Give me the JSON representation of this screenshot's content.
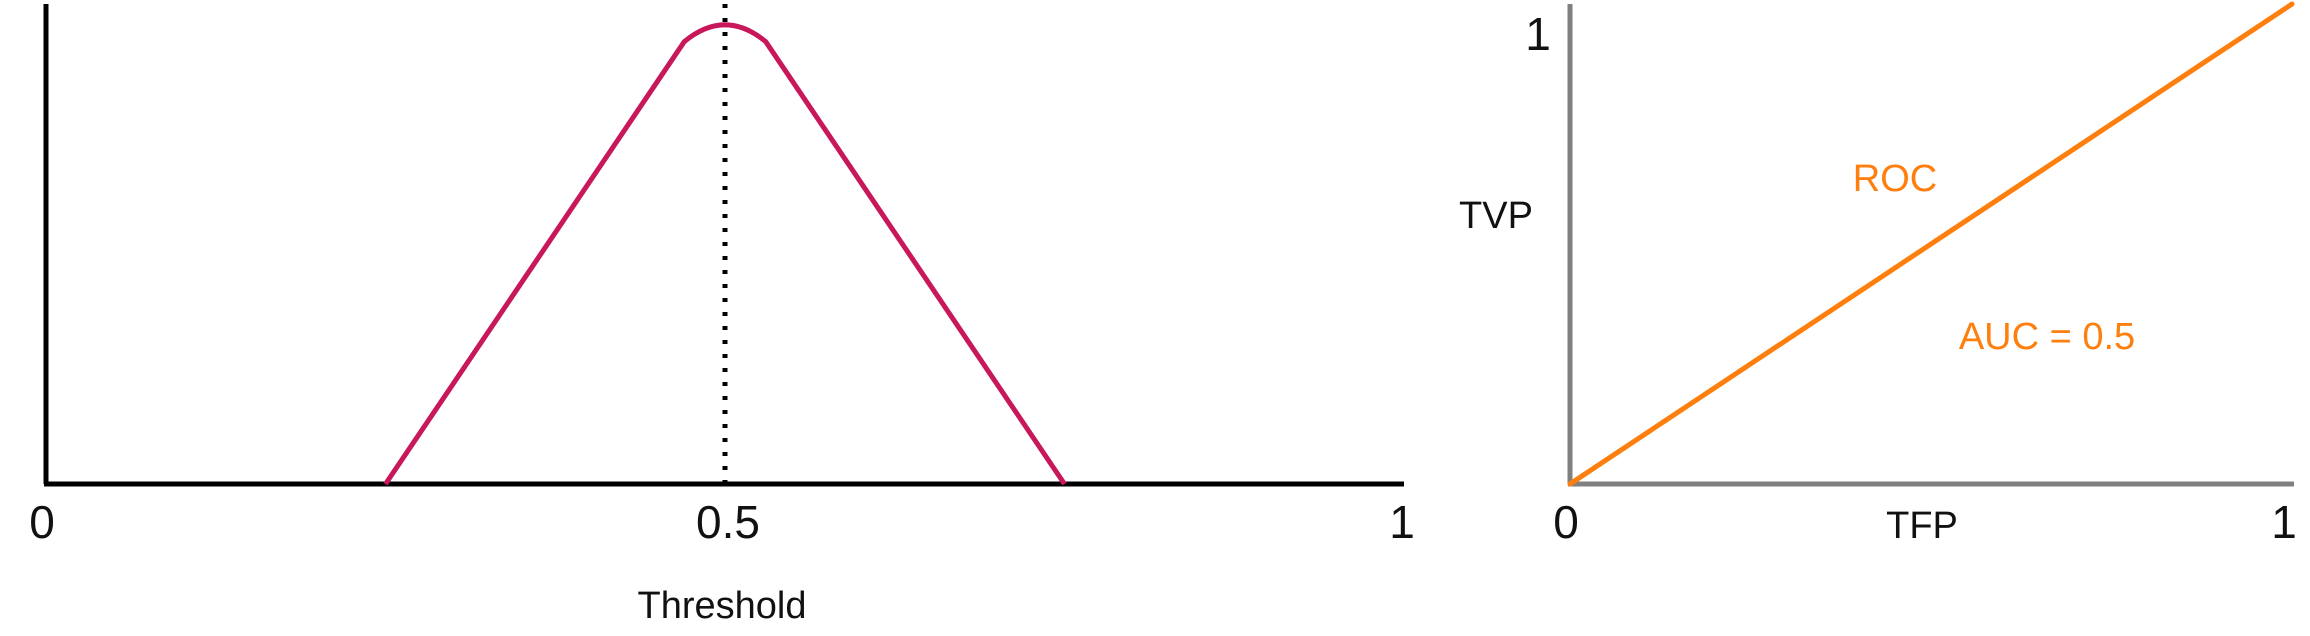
{
  "chart_data": [
    {
      "type": "area",
      "xlabel": "Threshold",
      "xlim": [
        0,
        1
      ],
      "x_ticks": [
        "0",
        "0.5",
        "1"
      ],
      "series": [
        {
          "x": [
            0.25,
            0.47,
            0.5,
            0.53,
            0.75
          ],
          "y": [
            0,
            0.97,
            1.0,
            0.97,
            0
          ]
        }
      ],
      "threshold": 0.5,
      "colors": {
        "curve": "#c8175a",
        "axis": "#000000"
      }
    },
    {
      "type": "line",
      "xlabel": "TFP",
      "ylabel": "TVP",
      "xlim": [
        0,
        1
      ],
      "ylim": [
        0,
        1
      ],
      "x_ticks": [
        "0",
        "1"
      ],
      "y_ticks": [
        "1"
      ],
      "series": [
        {
          "x": [
            0,
            1
          ],
          "y": [
            0,
            1
          ]
        }
      ],
      "annotations": {
        "curve": "ROC",
        "auc": "AUC = 0.5"
      },
      "colors": {
        "curve": "#ff7f0e",
        "axis": "#808080"
      }
    }
  ]
}
